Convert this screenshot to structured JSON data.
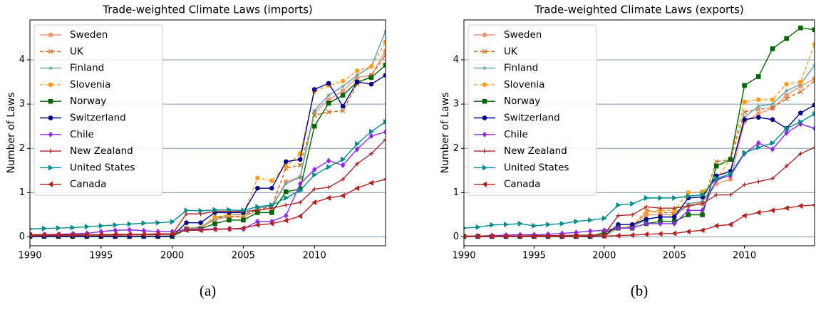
{
  "chart_data": [
    {
      "type": "line",
      "title": "Trade-weighted Climate Laws (imports)",
      "y_label": "Number of Laws",
      "caption": "(a)",
      "x": [
        1990,
        1991,
        1992,
        1993,
        1994,
        1995,
        1996,
        1997,
        1998,
        1999,
        2000,
        2001,
        2002,
        2003,
        2004,
        2005,
        2006,
        2007,
        2008,
        2009,
        2010,
        2011,
        2012,
        2013,
        2014,
        2015
      ],
      "xlim": [
        1990,
        2015
      ],
      "ylim": [
        -0.2,
        4.9
      ],
      "xticks": [
        1990,
        1995,
        2000,
        2005,
        2010
      ],
      "yticks": [
        0,
        1,
        2,
        3,
        4
      ],
      "grid": true,
      "legend": "upper-left",
      "series": [
        {
          "name": "Sweden",
          "color": "#e9967a",
          "marker": "circle",
          "dashed": false,
          "values": [
            0.02,
            0.02,
            0.02,
            0.02,
            0.02,
            0.02,
            0.02,
            0.02,
            0.02,
            0.02,
            0.02,
            0.2,
            0.2,
            0.4,
            0.45,
            0.45,
            0.6,
            0.65,
            1.25,
            1.35,
            2.8,
            3.1,
            3.3,
            3.6,
            3.65,
            4.2
          ]
        },
        {
          "name": "UK",
          "color": "#d2691e",
          "marker": "x",
          "dashed": true,
          "values": [
            0.02,
            0.02,
            0.02,
            0.02,
            0.02,
            0.02,
            0.02,
            0.02,
            0.02,
            0.02,
            0.02,
            0.18,
            0.2,
            0.42,
            0.46,
            0.47,
            0.62,
            0.68,
            1.55,
            1.62,
            2.75,
            2.82,
            2.85,
            3.45,
            3.65,
            4.1
          ]
        },
        {
          "name": "Finland",
          "color": "#5f9ea0",
          "marker": "star",
          "dashed": false,
          "values": [
            0.02,
            0.02,
            0.02,
            0.02,
            0.02,
            0.02,
            0.02,
            0.02,
            0.02,
            0.02,
            0.02,
            0.2,
            0.22,
            0.42,
            0.5,
            0.5,
            0.65,
            0.7,
            1.2,
            1.35,
            2.85,
            3.2,
            3.4,
            3.65,
            3.85,
            4.65
          ]
        },
        {
          "name": "Slovenia",
          "color": "#ff9f1c",
          "marker": "circle",
          "dashed": true,
          "values": [
            0.02,
            0.02,
            0.02,
            0.02,
            0.02,
            0.02,
            0.02,
            0.02,
            0.02,
            0.02,
            0.02,
            0.2,
            0.2,
            0.45,
            0.5,
            0.52,
            1.33,
            1.27,
            1.6,
            1.88,
            3.28,
            3.42,
            3.52,
            3.75,
            3.85,
            4.4
          ]
        },
        {
          "name": "Norway",
          "color": "#006400",
          "marker": "square",
          "dashed": false,
          "values": [
            0.01,
            0.01,
            0.01,
            0.01,
            0.01,
            0.01,
            0.01,
            0.01,
            0.01,
            0.01,
            0.01,
            0.17,
            0.18,
            0.3,
            0.38,
            0.38,
            0.55,
            0.55,
            1.02,
            1.08,
            2.5,
            3.02,
            3.2,
            3.5,
            3.6,
            3.88
          ]
        },
        {
          "name": "Switzerland",
          "color": "#000080",
          "marker": "circle",
          "dashed": false,
          "values": [
            0.01,
            0.01,
            0.01,
            0.01,
            0.01,
            0.01,
            0.01,
            0.01,
            0.01,
            0.01,
            0.02,
            0.32,
            0.32,
            0.55,
            0.55,
            0.55,
            1.1,
            1.1,
            1.7,
            1.75,
            3.33,
            3.47,
            2.95,
            3.5,
            3.45,
            3.65
          ]
        },
        {
          "name": "Chile",
          "color": "#8a2be2",
          "marker": "diamond",
          "dashed": false,
          "values": [
            0.05,
            0.05,
            0.06,
            0.07,
            0.08,
            0.12,
            0.15,
            0.16,
            0.14,
            0.12,
            0.12,
            0.17,
            0.17,
            0.18,
            0.18,
            0.18,
            0.35,
            0.35,
            0.48,
            1.2,
            1.52,
            1.72,
            1.62,
            1.98,
            2.28,
            2.37
          ]
        },
        {
          "name": "New Zealand",
          "color": "#a52a2a",
          "marker": "plus",
          "dashed": false,
          "values": [
            0.03,
            0.03,
            0.03,
            0.03,
            0.04,
            0.04,
            0.04,
            0.05,
            0.05,
            0.05,
            0.06,
            0.52,
            0.52,
            0.58,
            0.58,
            0.58,
            0.6,
            0.65,
            0.72,
            0.78,
            1.08,
            1.12,
            1.3,
            1.65,
            1.88,
            2.2
          ]
        },
        {
          "name": "United States",
          "color": "#008b8b",
          "marker": "triangle-right",
          "dashed": false,
          "values": [
            0.18,
            0.19,
            0.2,
            0.21,
            0.23,
            0.25,
            0.27,
            0.29,
            0.31,
            0.32,
            0.34,
            0.6,
            0.59,
            0.61,
            0.61,
            0.6,
            0.68,
            0.72,
            0.88,
            1.05,
            1.4,
            1.58,
            1.75,
            2.1,
            2.38,
            2.6
          ]
        },
        {
          "name": "Canada",
          "color": "#b22222",
          "marker": "triangle-left",
          "dashed": false,
          "values": [
            0.05,
            0.05,
            0.05,
            0.05,
            0.05,
            0.05,
            0.06,
            0.06,
            0.06,
            0.07,
            0.07,
            0.15,
            0.15,
            0.17,
            0.18,
            0.2,
            0.27,
            0.3,
            0.37,
            0.47,
            0.78,
            0.88,
            0.93,
            1.1,
            1.22,
            1.3
          ]
        }
      ]
    },
    {
      "type": "line",
      "title": "Trade-weighted Climate Laws (exports)",
      "y_label": "Number of Laws",
      "caption": "(b)",
      "x": [
        1990,
        1991,
        1992,
        1993,
        1994,
        1995,
        1996,
        1997,
        1998,
        1999,
        2000,
        2001,
        2002,
        2003,
        2004,
        2005,
        2006,
        2007,
        2008,
        2009,
        2010,
        2011,
        2012,
        2013,
        2014,
        2015
      ],
      "xlim": [
        1990,
        2015
      ],
      "ylim": [
        -0.2,
        4.9
      ],
      "xticks": [
        1990,
        1995,
        2000,
        2005,
        2010
      ],
      "yticks": [
        0,
        1,
        2,
        3,
        4
      ],
      "grid": true,
      "legend": "upper-left",
      "series": [
        {
          "name": "Sweden",
          "color": "#e9967a",
          "marker": "circle",
          "dashed": false,
          "values": [
            0.02,
            0.02,
            0.02,
            0.02,
            0.02,
            0.02,
            0.02,
            0.02,
            0.02,
            0.02,
            0.02,
            0.2,
            0.2,
            0.5,
            0.5,
            0.5,
            0.7,
            0.78,
            1.2,
            1.3,
            2.6,
            2.78,
            2.9,
            3.2,
            3.4,
            3.58
          ]
        },
        {
          "name": "UK",
          "color": "#d2691e",
          "marker": "x",
          "dashed": true,
          "values": [
            0.02,
            0.02,
            0.02,
            0.02,
            0.02,
            0.02,
            0.02,
            0.02,
            0.02,
            0.02,
            0.02,
            0.2,
            0.2,
            0.6,
            0.55,
            0.55,
            0.72,
            0.75,
            1.7,
            1.75,
            2.82,
            2.88,
            2.92,
            3.12,
            3.28,
            3.52
          ]
        },
        {
          "name": "Finland",
          "color": "#5f9ea0",
          "marker": "star",
          "dashed": false,
          "values": [
            0.02,
            0.02,
            0.02,
            0.02,
            0.02,
            0.02,
            0.02,
            0.02,
            0.02,
            0.02,
            0.02,
            0.2,
            0.22,
            0.4,
            0.45,
            0.45,
            0.75,
            0.8,
            1.25,
            1.45,
            2.7,
            2.95,
            3.0,
            3.3,
            3.45,
            3.88
          ]
        },
        {
          "name": "Slovenia",
          "color": "#ff9f1c",
          "marker": "circle",
          "dashed": true,
          "values": [
            0.02,
            0.02,
            0.02,
            0.02,
            0.02,
            0.02,
            0.02,
            0.02,
            0.02,
            0.02,
            0.02,
            0.2,
            0.25,
            0.55,
            0.6,
            0.6,
            1.0,
            1.02,
            1.3,
            1.77,
            3.05,
            3.1,
            3.1,
            3.45,
            3.5,
            4.35
          ]
        },
        {
          "name": "Norway",
          "color": "#006400",
          "marker": "square",
          "dashed": false,
          "values": [
            0.01,
            0.01,
            0.01,
            0.01,
            0.01,
            0.01,
            0.01,
            0.01,
            0.01,
            0.01,
            0.1,
            0.2,
            0.2,
            0.3,
            0.35,
            0.35,
            0.5,
            0.5,
            1.6,
            1.75,
            3.42,
            3.62,
            4.25,
            4.48,
            4.72,
            4.68
          ]
        },
        {
          "name": "Switzerland",
          "color": "#000080",
          "marker": "circle",
          "dashed": false,
          "values": [
            0.01,
            0.01,
            0.01,
            0.01,
            0.01,
            0.01,
            0.01,
            0.01,
            0.01,
            0.01,
            0.02,
            0.28,
            0.28,
            0.4,
            0.45,
            0.45,
            0.88,
            0.9,
            1.38,
            1.48,
            2.65,
            2.7,
            2.65,
            2.45,
            2.8,
            2.98
          ]
        },
        {
          "name": "Chile",
          "color": "#8a2be2",
          "marker": "diamond",
          "dashed": false,
          "values": [
            0.02,
            0.02,
            0.03,
            0.04,
            0.05,
            0.05,
            0.06,
            0.08,
            0.1,
            0.13,
            0.15,
            0.2,
            0.2,
            0.3,
            0.3,
            0.3,
            0.6,
            0.6,
            1.3,
            1.38,
            1.88,
            2.12,
            1.98,
            2.35,
            2.55,
            2.45
          ]
        },
        {
          "name": "New Zealand",
          "color": "#a52a2a",
          "marker": "plus",
          "dashed": false,
          "values": [
            0.02,
            0.02,
            0.02,
            0.02,
            0.02,
            0.03,
            0.03,
            0.03,
            0.04,
            0.04,
            0.05,
            0.48,
            0.5,
            0.68,
            0.65,
            0.65,
            0.7,
            0.75,
            0.95,
            0.95,
            1.18,
            1.25,
            1.32,
            1.6,
            1.88,
            2.02
          ]
        },
        {
          "name": "United States",
          "color": "#008b8b",
          "marker": "triangle-right",
          "dashed": false,
          "values": [
            0.2,
            0.22,
            0.27,
            0.28,
            0.3,
            0.25,
            0.28,
            0.3,
            0.35,
            0.38,
            0.42,
            0.72,
            0.75,
            0.88,
            0.88,
            0.88,
            0.92,
            0.95,
            1.32,
            1.42,
            1.9,
            2.02,
            2.12,
            2.45,
            2.6,
            2.78
          ]
        },
        {
          "name": "Canada",
          "color": "#b22222",
          "marker": "triangle-left",
          "dashed": false,
          "values": [
            0.01,
            0.01,
            0.01,
            0.01,
            0.01,
            0.01,
            0.01,
            0.01,
            0.01,
            0.02,
            0.02,
            0.03,
            0.04,
            0.06,
            0.07,
            0.08,
            0.12,
            0.15,
            0.25,
            0.28,
            0.48,
            0.55,
            0.6,
            0.65,
            0.7,
            0.72
          ]
        }
      ]
    }
  ]
}
